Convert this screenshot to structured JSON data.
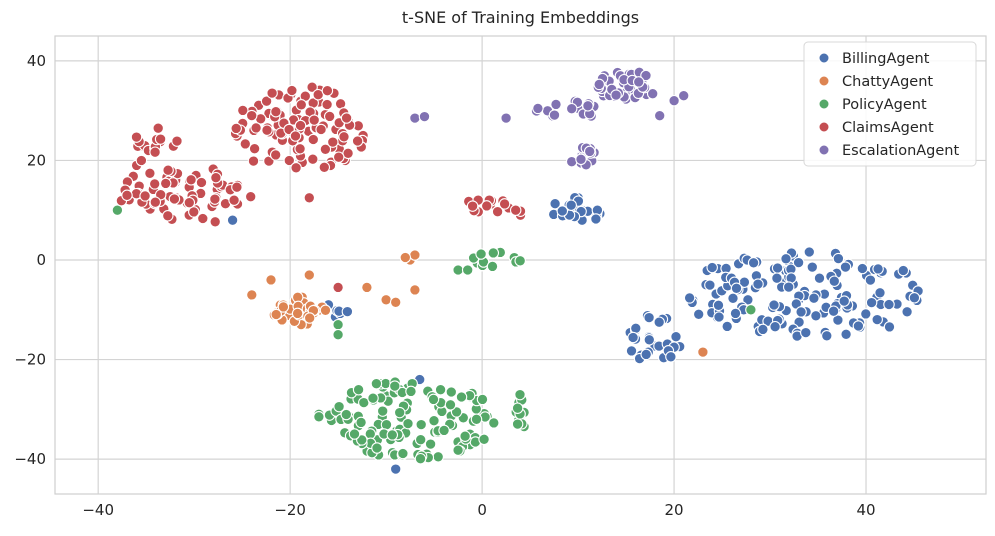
{
  "chart_data": {
    "type": "scatter",
    "title": "t-SNE of Training Embeddings",
    "xlabel": "",
    "ylabel": "",
    "xlim": [
      -44.5,
      52.5
    ],
    "ylim": [
      -47,
      45
    ],
    "xticks": [
      -40,
      -20,
      0,
      20,
      40
    ],
    "yticks": [
      -40,
      -20,
      0,
      20,
      40
    ],
    "xtick_labels": [
      "−40",
      "−20",
      "0",
      "20",
      "40"
    ],
    "ytick_labels": [
      "−40",
      "−20",
      "0",
      "20",
      "40"
    ],
    "grid": true,
    "legend_position": "top-right",
    "series": [
      {
        "name": "BillingAgent",
        "color": "#4c72b0",
        "clusters": [
          {
            "cx": 34,
            "cy": -7,
            "rx": 13,
            "ry": 9,
            "n": 150
          },
          {
            "cx": 18,
            "cy": -16,
            "rx": 3,
            "ry": 5,
            "n": 28
          },
          {
            "cx": 10,
            "cy": 10,
            "rx": 3,
            "ry": 3,
            "n": 26
          },
          {
            "cx": -15,
            "cy": -10,
            "rx": 1.5,
            "ry": 1.5,
            "n": 6
          }
        ],
        "points": [
          [
            -26,
            8
          ],
          [
            -9,
            -42
          ],
          [
            -6.5,
            -24
          ],
          [
            -16,
            -9
          ]
        ]
      },
      {
        "name": "ChattyAgent",
        "color": "#dd8452",
        "clusters": [
          {
            "cx": -19,
            "cy": -10,
            "rx": 3,
            "ry": 3,
            "n": 34
          }
        ],
        "points": [
          [
            -22,
            -4
          ],
          [
            -24,
            -7
          ],
          [
            -18,
            -3
          ],
          [
            -12,
            -5.5
          ],
          [
            -10,
            -8
          ],
          [
            -9,
            -8.5
          ],
          [
            -7,
            -6
          ],
          [
            -7.5,
            0
          ],
          [
            -7,
            1
          ],
          [
            -8,
            0.5
          ],
          [
            23,
            -18.5
          ]
        ]
      },
      {
        "name": "PolicyAgent",
        "color": "#55a868",
        "clusters": [
          {
            "cx": -7,
            "cy": -32,
            "rx": 9,
            "ry": 8,
            "n": 130
          },
          {
            "cx": 4,
            "cy": -31,
            "rx": 0.5,
            "ry": 4,
            "n": 14
          },
          {
            "cx": 1.5,
            "cy": 0,
            "rx": 2.5,
            "ry": 1.6,
            "n": 14
          }
        ],
        "points": [
          [
            -38,
            10
          ],
          [
            -2.5,
            -2
          ],
          [
            -1.5,
            -2
          ],
          [
            -15,
            -13
          ],
          [
            -15,
            -15
          ],
          [
            -17,
            -31
          ],
          [
            -17,
            -31.5
          ],
          [
            28,
            -10
          ]
        ]
      },
      {
        "name": "ClaimsAgent",
        "color": "#c44e52",
        "clusters": [
          {
            "cx": -19,
            "cy": 26,
            "rx": 7,
            "ry": 9,
            "n": 110
          },
          {
            "cx": -31,
            "cy": 13,
            "rx": 7,
            "ry": 6,
            "n": 70
          },
          {
            "cx": -34,
            "cy": 24,
            "rx": 2.5,
            "ry": 2.5,
            "n": 16
          },
          {
            "cx": 0.5,
            "cy": 11,
            "rx": 2.5,
            "ry": 1.6,
            "n": 14
          }
        ],
        "points": [
          [
            -15,
            -5.5
          ],
          [
            -18,
            12.5
          ],
          [
            4,
            9
          ],
          [
            4,
            9.8
          ],
          [
            3.5,
            10
          ],
          [
            -37,
            13
          ],
          [
            -36,
            19
          ],
          [
            -35.5,
            20
          ]
        ]
      },
      {
        "name": "EscalationAgent",
        "color": "#8172b2",
        "clusters": [
          {
            "cx": 15,
            "cy": 35,
            "rx": 3.5,
            "ry": 3,
            "n": 45
          },
          {
            "cx": 9,
            "cy": 30,
            "rx": 4.5,
            "ry": 2,
            "n": 20
          },
          {
            "cx": 10.5,
            "cy": 21,
            "rx": 1.5,
            "ry": 2,
            "n": 14
          }
        ],
        "points": [
          [
            -7,
            28.5
          ],
          [
            -6,
            28.8
          ],
          [
            2.5,
            28.5
          ],
          [
            20,
            32
          ],
          [
            21,
            33
          ],
          [
            18.5,
            29
          ]
        ]
      }
    ]
  }
}
